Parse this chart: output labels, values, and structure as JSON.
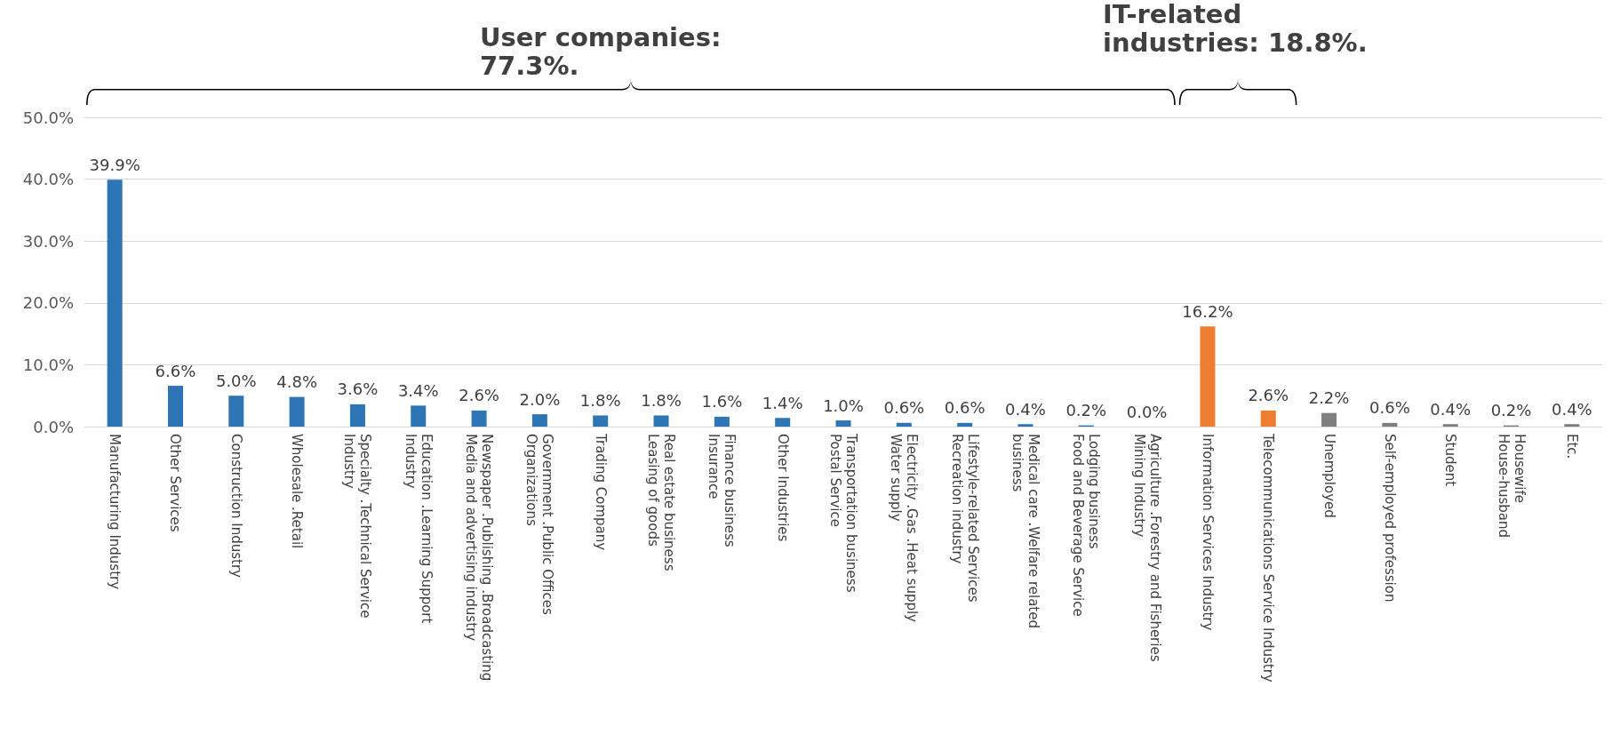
{
  "chart_data": {
    "type": "bar",
    "categories": [
      "Manufacturing Industry",
      "Other Services",
      "Construction Industry",
      "Wholesale .Retail",
      "Specialty .Technical Service\nIndustry",
      "Education .Learning Support\nIndustry",
      "Newspaper .Publishing .Broadcasting\nMedia and advertising industry",
      "Government .Public Offices\nOrganizations",
      "Trading Company",
      "Real estate business\nLeasing of goods",
      "Finance business\nInsurance",
      "Other Industries",
      "Transportation business\nPostal Service",
      "Electricity .Gas .Heat supply\nWater supply",
      "Lifestyle-related Services\nRecreation industry",
      "Medical care .Welfare related\nbusiness",
      "Lodging business\nFood and Beverage Service",
      "Agriculture .Forestry and Fisheries\nMining Industry",
      "Information Services Industry",
      "Telecommunications Service Industry",
      "Unemployed",
      "Self-employed profession",
      "Student",
      "Housewife\nHouse-husband",
      "Etc."
    ],
    "values": [
      39.9,
      6.6,
      5.0,
      4.8,
      3.6,
      3.4,
      2.6,
      2.0,
      1.8,
      1.8,
      1.6,
      1.4,
      1.0,
      0.6,
      0.6,
      0.4,
      0.2,
      0.0,
      16.2,
      2.6,
      2.2,
      0.6,
      0.4,
      0.2,
      0.4
    ],
    "value_labels": [
      "39.9%",
      "6.6%",
      "5.0%",
      "4.8%",
      "3.6%",
      "3.4%",
      "2.6%",
      "2.0%",
      "1.8%",
      "1.8%",
      "1.6%",
      "1.4%",
      "1.0%",
      "0.6%",
      "0.6%",
      "0.4%",
      "0.2%",
      "0.0%",
      "16.2%",
      "2.6%",
      "2.2%",
      "0.6%",
      "0.4%",
      "0.2%",
      "0.4%"
    ],
    "colors": [
      "#2e75b6",
      "#2e75b6",
      "#2e75b6",
      "#2e75b6",
      "#2e75b6",
      "#2e75b6",
      "#2e75b6",
      "#2e75b6",
      "#2e75b6",
      "#2e75b6",
      "#2e75b6",
      "#2e75b6",
      "#2e75b6",
      "#2e75b6",
      "#2e75b6",
      "#2e75b6",
      "#2e75b6",
      "#2e75b6",
      "#ed7d31",
      "#ed7d31",
      "#7f7f7f",
      "#7f7f7f",
      "#7f7f7f",
      "#7f7f7f",
      "#7f7f7f"
    ],
    "ylim": [
      0,
      50
    ],
    "yticks": [
      {
        "value": 0,
        "label": "0.0%"
      },
      {
        "value": 10,
        "label": "10.0%"
      },
      {
        "value": 20,
        "label": "20.0%"
      },
      {
        "value": 30,
        "label": "30.0%"
      },
      {
        "value": 40,
        "label": "40.0%"
      },
      {
        "value": 50,
        "label": "50.0%"
      }
    ],
    "grid": "y",
    "annotations": [
      "User companies:\n77.3%.",
      "IT-related\nindustries: 18.8%."
    ]
  }
}
